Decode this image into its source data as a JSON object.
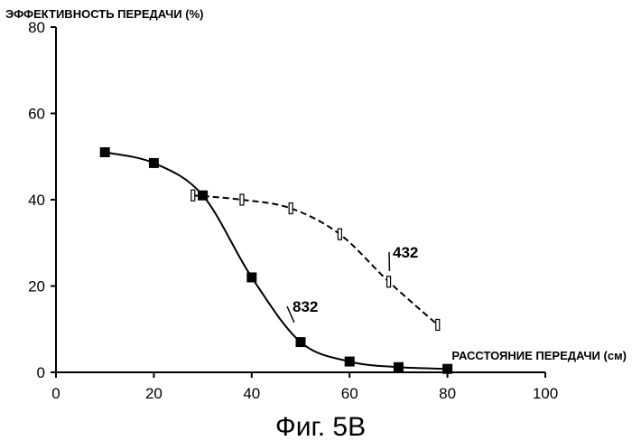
{
  "chart_data": {
    "type": "line",
    "ylabel": "ЭФФЕКТИВНОСТЬ ПЕРЕДАЧИ (%)",
    "xlabel": "РАССТОЯНИЕ ПЕРЕДАЧИ (см)",
    "caption": "Фиг. 5В",
    "xlim": [
      0,
      100
    ],
    "ylim": [
      0,
      80
    ],
    "xticks": [
      0,
      20,
      40,
      60,
      80,
      100
    ],
    "yticks": [
      0,
      20,
      40,
      60,
      80
    ],
    "grid": false,
    "series": [
      {
        "name": "832",
        "style": "solid",
        "marker": "filled-square",
        "color": "#000000",
        "x": [
          10,
          20,
          30,
          40,
          50,
          60,
          70,
          80
        ],
        "y": [
          51,
          48.5,
          41,
          22,
          7,
          2.5,
          1.2,
          0.8
        ]
      },
      {
        "name": "432",
        "style": "dashed",
        "marker": "open-bar",
        "color": "#000000",
        "x": [
          28,
          38,
          48,
          58,
          68,
          78
        ],
        "y": [
          41,
          40,
          38,
          32,
          21,
          11
        ]
      }
    ]
  }
}
